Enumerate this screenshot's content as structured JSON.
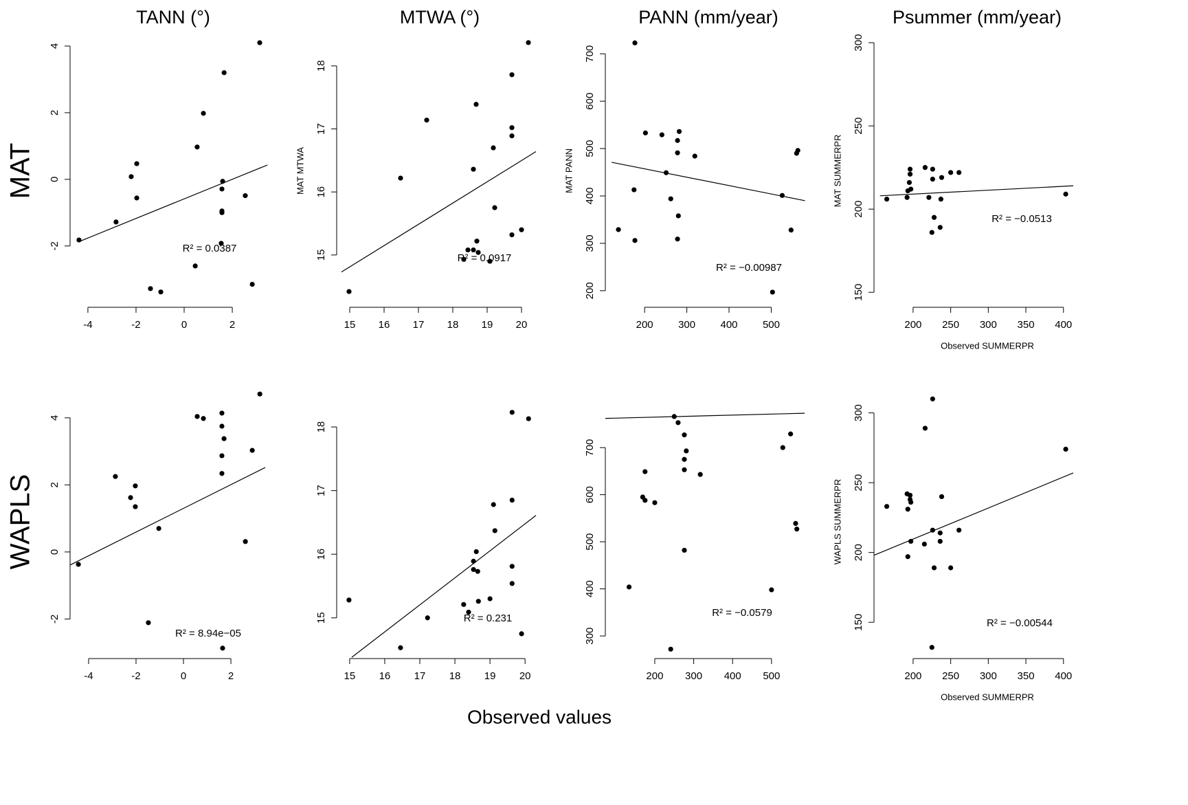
{
  "figure": {
    "column_titles": [
      "TANN (°)",
      "MTWA (°)",
      "PANN (mm/year)",
      "Psummer (mm/year)"
    ],
    "row_labels": [
      "MAT",
      "WAPLS"
    ],
    "xlabel": "Observed values"
  },
  "chart_data": [
    {
      "type": "scatter",
      "color": "#000000",
      "x": [
        -4.37,
        -2.83,
        -2.2,
        -1.97,
        -1.97,
        -1.4,
        -0.97,
        0.46,
        0.54,
        0.8,
        1.6,
        1.57,
        1.57,
        1.57,
        1.54,
        1.66,
        2.54,
        2.83,
        3.14
      ],
      "y": [
        -1.82,
        -1.28,
        0.08,
        0.47,
        -0.56,
        -3.28,
        -3.38,
        -2.6,
        0.97,
        1.98,
        -0.06,
        -0.29,
        -0.95,
        -1.0,
        -1.92,
        3.2,
        -0.49,
        -3.15,
        4.1
      ],
      "fit": {
        "x": [
          -4.37,
          3.46
        ],
        "y": [
          -1.87,
          0.43
        ]
      },
      "annotation": "R² = 0.0387",
      "xlim": [
        -4.74,
        3.54
      ],
      "ylim": [
        -3.84,
        4.35
      ],
      "xticks": [
        -4,
        -2,
        0,
        2
      ],
      "yticks": [
        -2,
        0,
        2,
        4
      ]
    },
    {
      "type": "scatter",
      "color": "#000000",
      "ylabel": "MAT MTWA",
      "x": [
        14.98,
        16.48,
        17.24,
        18.6,
        18.68,
        18.32,
        18.44,
        18.6,
        18.7,
        18.74,
        19.08,
        19.18,
        19.22,
        19.72,
        19.72,
        19.72,
        19.72,
        20.0,
        20.2
      ],
      "y": [
        14.42,
        16.22,
        17.14,
        16.36,
        17.39,
        14.93,
        15.08,
        15.08,
        15.22,
        15.04,
        14.9,
        16.7,
        15.75,
        17.86,
        17.02,
        16.89,
        15.32,
        15.4,
        18.37
      ],
      "fit": {
        "x": [
          14.76,
          20.42
        ],
        "y": [
          14.73,
          16.64
        ]
      },
      "annotation": "R² = 0.0917",
      "xlim": [
        14.62,
        20.42
      ],
      "ylim": [
        14.17,
        18.5
      ],
      "xticks": [
        15,
        16,
        17,
        18,
        19,
        20
      ],
      "yticks": [
        15,
        16,
        17,
        18
      ]
    },
    {
      "type": "scatter",
      "color": "#000000",
      "ylabel": "MAT PANN",
      "x": [
        138,
        177,
        175,
        177,
        202,
        241,
        251,
        262,
        278,
        282,
        278,
        280,
        278,
        319,
        503,
        526,
        547,
        560,
        563
      ],
      "y": [
        329,
        723,
        413,
        306,
        533,
        529,
        449,
        394,
        517,
        536,
        491,
        358,
        309,
        484,
        197,
        401,
        328,
        490,
        496
      ],
      "fit": {
        "x": [
          122,
          580
        ],
        "y": [
          471,
          390
        ]
      },
      "annotation": "R² = −0.00987",
      "xlim": [
        107,
        579
      ],
      "ylim": [
        165,
        741
      ],
      "xticks": [
        200,
        300,
        400,
        500
      ],
      "yticks": [
        200,
        300,
        400,
        500,
        600,
        700
      ]
    },
    {
      "type": "scatter",
      "color": "#000000",
      "ylabel": "MAT SUMMERPR",
      "xlabel": "Observed SUMMERPR",
      "x": [
        165,
        192,
        196,
        196,
        195,
        193,
        197,
        216,
        226,
        226,
        238,
        250,
        261,
        221,
        237,
        228,
        236,
        225,
        403
      ],
      "y": [
        206,
        207,
        224,
        221,
        216,
        211,
        212,
        225,
        224,
        218,
        219,
        222,
        222,
        207,
        206,
        195,
        189,
        186,
        209
      ],
      "fit": {
        "x": [
          156,
          413
        ],
        "y": [
          208,
          214
        ]
      },
      "annotation": "R² = −0.0513",
      "xlim": [
        148,
        413
      ],
      "ylim": [
        141,
        305
      ],
      "xticks": [
        200,
        250,
        300,
        350,
        400
      ],
      "yticks": [
        150,
        200,
        250,
        300
      ]
    },
    {
      "type": "scatter",
      "color": "#000000",
      "x": [
        -4.43,
        -2.87,
        -2.23,
        -2.03,
        -2.03,
        -1.48,
        -1.04,
        0.58,
        0.84,
        1.62,
        1.62,
        1.71,
        1.62,
        1.62,
        1.65,
        2.61,
        2.9,
        3.22
      ],
      "y": [
        -0.37,
        2.25,
        1.62,
        1.97,
        1.35,
        -2.11,
        0.7,
        4.04,
        3.98,
        4.14,
        3.75,
        3.38,
        2.87,
        2.34,
        -2.87,
        0.31,
        3.03,
        4.71
      ],
      "fit": {
        "x": [
          -4.78,
          3.45
        ],
        "y": [
          -0.39,
          2.52
        ]
      },
      "annotation": "R² = 8.94e−05",
      "xlim": [
        -4.78,
        3.62
      ],
      "ylim": [
        -3.18,
        4.98
      ],
      "xticks": [
        -4,
        -2,
        0,
        2
      ],
      "yticks": [
        -2,
        0,
        2,
        4
      ]
    },
    {
      "type": "scatter",
      "color": "#000000",
      "x": [
        14.98,
        16.45,
        17.22,
        18.25,
        18.39,
        18.53,
        18.61,
        18.53,
        18.65,
        18.67,
        19.0,
        19.1,
        19.14,
        19.63,
        19.63,
        19.63,
        19.63,
        19.9,
        20.1
      ],
      "y": [
        15.28,
        14.53,
        15.0,
        15.21,
        15.09,
        15.89,
        16.04,
        15.76,
        15.73,
        15.26,
        15.3,
        16.78,
        16.37,
        18.23,
        16.85,
        15.81,
        15.54,
        14.75,
        18.13
      ],
      "fit": {
        "x": [
          15.06,
          20.31
        ],
        "y": [
          14.38,
          16.61
        ]
      },
      "annotation": "R² = 0.231",
      "xlim": [
        14.63,
        20.31
      ],
      "ylim": [
        14.36,
        18.66
      ],
      "xticks": [
        15,
        16,
        17,
        18,
        19,
        20
      ],
      "yticks": [
        15,
        16,
        17,
        18
      ]
    },
    {
      "type": "scatter",
      "color": "#000000",
      "x": [
        134,
        175,
        169,
        175,
        200,
        241,
        250,
        260,
        276,
        281,
        276,
        276,
        317,
        276,
        500,
        529,
        549,
        562,
        565
      ],
      "y": [
        404,
        649,
        595,
        588,
        583,
        272,
        766,
        753,
        727,
        693,
        675,
        653,
        643,
        482,
        398,
        700,
        729,
        539,
        527
      ],
      "fit": {
        "x": [
          73,
          585
        ],
        "y": [
          762,
          773
        ]
      },
      "annotation": "R² = −0.0579",
      "xlim": [
        73,
        585
      ],
      "ylim": [
        252,
        833
      ],
      "xticks": [
        200,
        300,
        400,
        500
      ],
      "yticks": [
        300,
        400,
        500,
        600,
        700
      ]
    },
    {
      "type": "scatter",
      "color": "#000000",
      "ylabel": "WAPLS SUMMERPR",
      "xlabel": "Observed SUMMERPR",
      "x": [
        165,
        192,
        196,
        196,
        197,
        193,
        197,
        193,
        216,
        226,
        225,
        226,
        236,
        236,
        228,
        238,
        250,
        261,
        215,
        403
      ],
      "y": [
        233,
        242,
        241,
        238,
        236,
        231,
        208,
        197,
        289,
        310,
        132,
        216,
        214,
        208,
        189,
        240,
        189,
        216,
        206,
        274
      ],
      "fit": {
        "x": [
          148,
          413
        ],
        "y": [
          198,
          257
        ]
      },
      "annotation": "R² = −0.00544",
      "xlim": [
        148,
        413
      ],
      "ylim": [
        124,
        320
      ],
      "xticks": [
        200,
        250,
        300,
        350,
        400
      ],
      "yticks": [
        150,
        200,
        250,
        300
      ]
    }
  ]
}
